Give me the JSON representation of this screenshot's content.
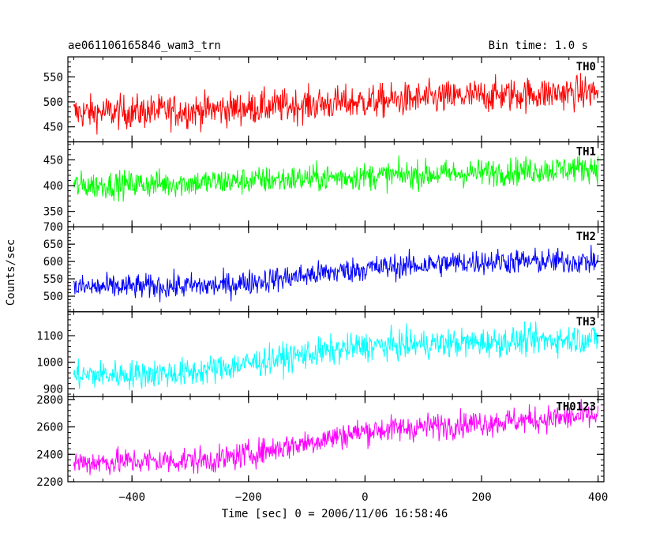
{
  "header": {
    "title": "ae061106165846_wam3_trn",
    "bin_time": "Bin time: 1.0 s"
  },
  "chart_data": {
    "type": "line",
    "title": "ae061106165846_wam3_trn",
    "subtitle": "Bin time: 1.0 s",
    "xlabel": "Time [sec] 0 = 2006/11/06 16:58:46",
    "ylabel": "Counts/sec",
    "xlim": [
      -510,
      410
    ],
    "x_range": [
      -500,
      400
    ],
    "x_ticks": [
      -400,
      -200,
      0,
      200,
      400
    ],
    "x_tick_labels": [
      "−400",
      "−200",
      "0",
      "200",
      "400"
    ],
    "grid": false,
    "panels": [
      {
        "name": "TH0",
        "color": "#ff0000",
        "ylim": [
          420,
          590
        ],
        "y_ticks": [
          450,
          500,
          550
        ],
        "trend": [
          [
            -500,
            478
          ],
          [
            -300,
            482
          ],
          [
            0,
            500
          ],
          [
            200,
            512
          ],
          [
            400,
            520
          ]
        ],
        "noise_amplitude": 28
      },
      {
        "name": "TH1",
        "color": "#00ff00",
        "ylim": [
          320,
          485
        ],
        "y_ticks": [
          350,
          400,
          450
        ],
        "trend": [
          [
            -500,
            400
          ],
          [
            -300,
            405
          ],
          [
            0,
            418
          ],
          [
            200,
            425
          ],
          [
            400,
            435
          ]
        ],
        "noise_amplitude": 22
      },
      {
        "name": "TH2",
        "color": "#0000ff",
        "ylim": [
          455,
          700
        ],
        "y_ticks": [
          500,
          550,
          600,
          650,
          700
        ],
        "trend": [
          [
            -500,
            525
          ],
          [
            -250,
            530
          ],
          [
            0,
            580
          ],
          [
            200,
            600
          ],
          [
            400,
            600
          ]
        ],
        "noise_amplitude": 30
      },
      {
        "name": "TH3",
        "color": "#00ffff",
        "ylim": [
          870,
          1190
        ],
        "y_ticks": [
          900,
          1000,
          1100
        ],
        "trend": [
          [
            -500,
            950
          ],
          [
            -300,
            960
          ],
          [
            -100,
            1030
          ],
          [
            0,
            1060
          ],
          [
            400,
            1090
          ]
        ],
        "noise_amplitude": 45
      },
      {
        "name": "TH0123",
        "color": "#ff00ff",
        "ylim": [
          2200,
          2820
        ],
        "y_ticks": [
          2200,
          2400,
          2600,
          2800
        ],
        "trend": [
          [
            -500,
            2340
          ],
          [
            -250,
            2360
          ],
          [
            0,
            2570
          ],
          [
            200,
            2630
          ],
          [
            400,
            2680
          ]
        ],
        "noise_amplitude": 80
      }
    ]
  }
}
